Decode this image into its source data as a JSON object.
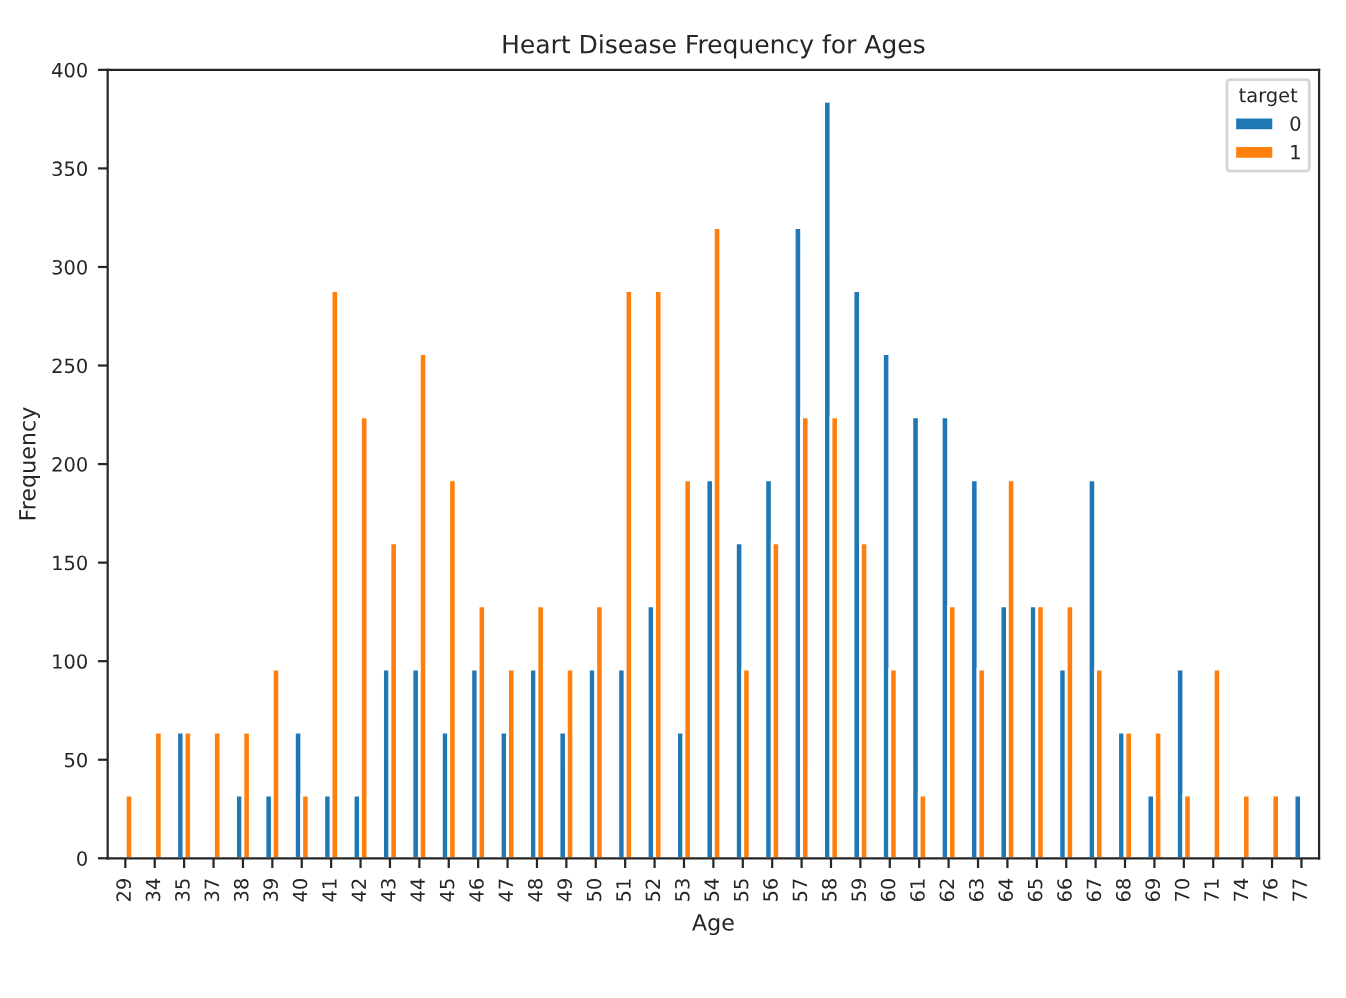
{
  "chart_data": {
    "type": "bar",
    "title": "Heart Disease Frequency for Ages",
    "xlabel": "Age",
    "ylabel": "Frequency",
    "legend_title": "target",
    "categories": [
      "29",
      "34",
      "35",
      "37",
      "38",
      "39",
      "40",
      "41",
      "42",
      "43",
      "44",
      "45",
      "46",
      "47",
      "48",
      "49",
      "50",
      "51",
      "52",
      "53",
      "54",
      "55",
      "56",
      "57",
      "58",
      "59",
      "60",
      "61",
      "62",
      "63",
      "64",
      "65",
      "66",
      "67",
      "68",
      "69",
      "70",
      "71",
      "74",
      "76",
      "77"
    ],
    "series": [
      {
        "name": "0",
        "color": "#1f77b4",
        "values": [
          null,
          null,
          64,
          null,
          32,
          32,
          64,
          32,
          32,
          96,
          96,
          64,
          96,
          64,
          96,
          64,
          96,
          96,
          128,
          64,
          192,
          160,
          192,
          320,
          384,
          288,
          256,
          224,
          224,
          192,
          128,
          128,
          96,
          192,
          64,
          32,
          96,
          null,
          null,
          null,
          32
        ]
      },
      {
        "name": "1",
        "color": "#ff7f0e",
        "values": [
          32,
          64,
          64,
          64,
          64,
          96,
          32,
          288,
          224,
          160,
          256,
          192,
          128,
          96,
          128,
          96,
          128,
          288,
          288,
          192,
          320,
          96,
          160,
          224,
          224,
          160,
          96,
          32,
          128,
          96,
          192,
          128,
          128,
          96,
          64,
          64,
          32,
          96,
          32,
          32,
          null
        ]
      }
    ],
    "ylim": [
      0,
      400
    ],
    "yticks": [
      0,
      50,
      100,
      150,
      200,
      250,
      300,
      350,
      400
    ],
    "legend": "top right",
    "grid": false
  }
}
